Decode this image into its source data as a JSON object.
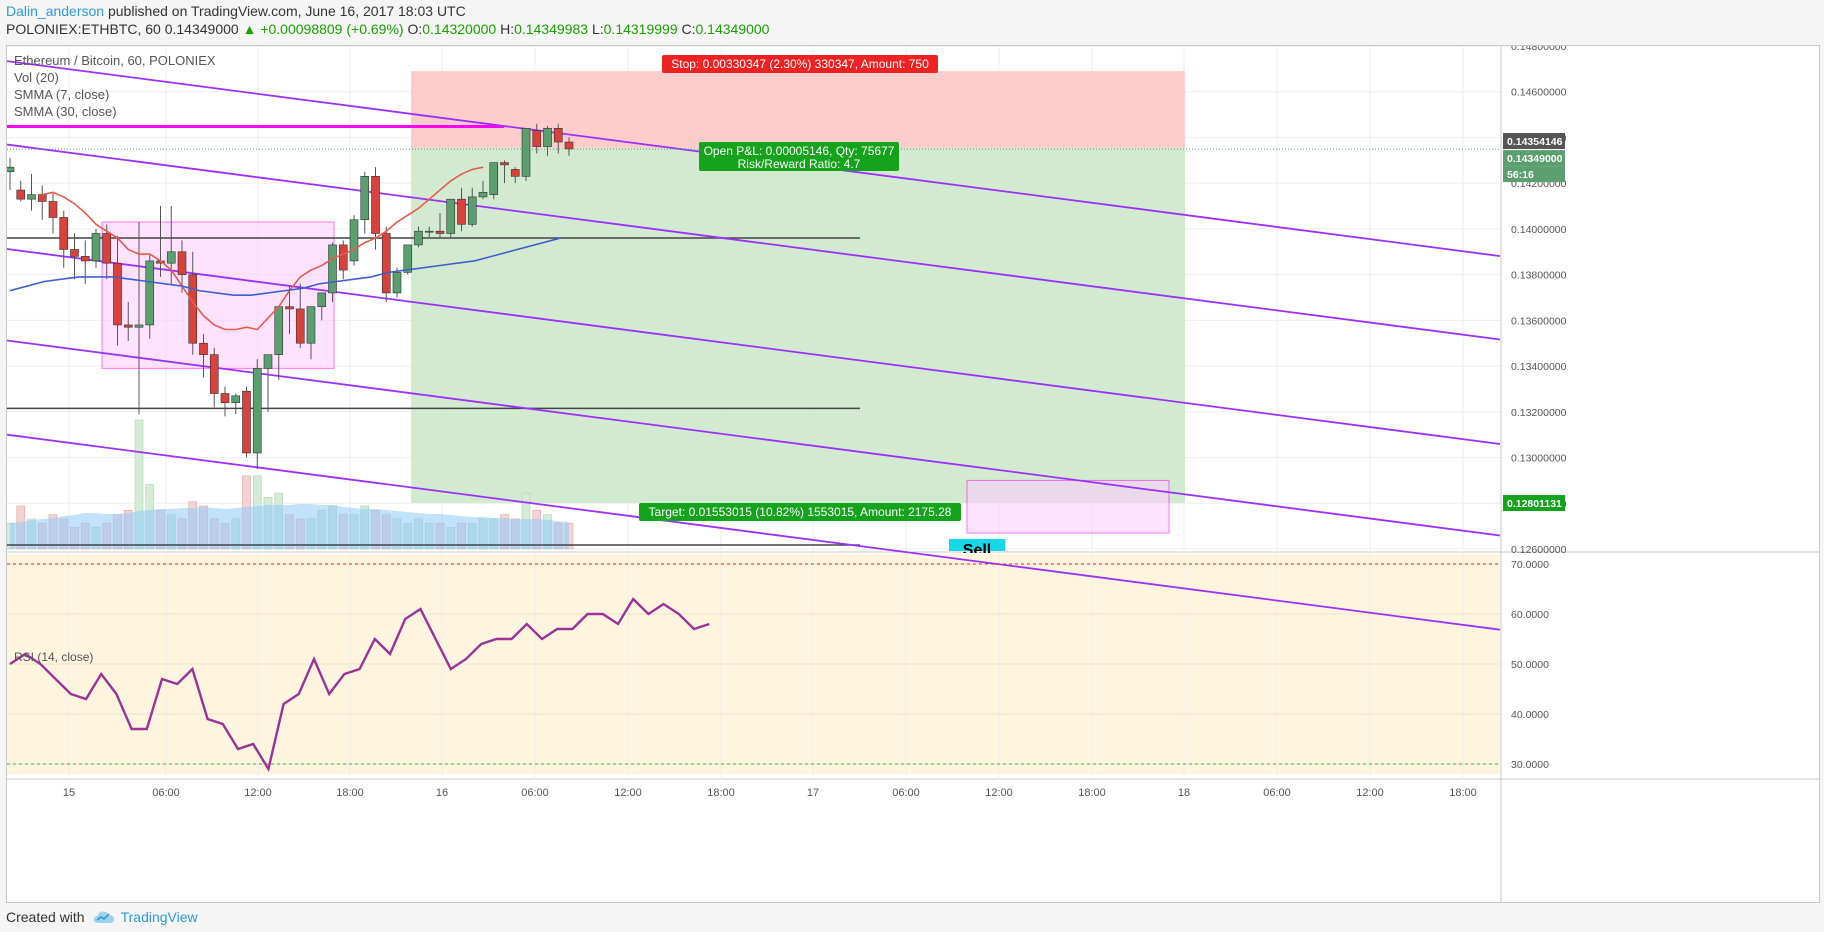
{
  "header": {
    "author": "Dalin_anderson",
    "published": "published on TradingView.com, June 16, 2017 18:03 UTC",
    "symbol_line": "POLONIEX:ETHBTC, 60",
    "last": "0.14349000",
    "change": "▲ +0.00098809 (+0.69%)",
    "o_label": "O:",
    "o": "0.14320000",
    "h_label": "H:",
    "h": "0.14349983",
    "l_label": "L:",
    "l": "0.14319999",
    "c_label": "C:",
    "c": "0.14349000"
  },
  "legend": {
    "title": "Ethereum / Bitcoin, 60, POLONIEX",
    "vol": "Vol (20)",
    "smma7": "SMMA (7, close)",
    "smma30": "SMMA (30, close)"
  },
  "rsi_label": "RSI (14, close)",
  "footer": {
    "created_with": "Created with",
    "brand": "TradingView"
  },
  "colors": {
    "up": "#5b9f6e",
    "down": "#d9413b",
    "channel": "#9b30ff",
    "magenta": "#ff00ff",
    "stop_zone": "#ffc7c7",
    "target_zone": "#cde9cb",
    "rsi_bg": "#fff5df",
    "rsi_line": "#9a3398",
    "smma7": "#e85c4a",
    "smma30": "#3f5fd0"
  },
  "annotations": {
    "stop": "Stop: 0.00330347 (2.30%) 330347, Amount: 750",
    "target": "Target: 0.01553015 (10.82%) 1553015, Amount: 2175.28",
    "pnl": "Open P&L: 0.00005146, Qty: 75677",
    "rr": "Risk/Reward Ratio: 4.7",
    "price_tag_top": "0.14354146",
    "price_tag_last": "0.14349000",
    "countdown": "56:16",
    "price_tag_target": "0.12801131",
    "sell_label": "Sell"
  },
  "chart_data": [
    {
      "type": "candlestick",
      "title": "Ethereum / Bitcoin, 60, POLONIEX",
      "ylim": [
        0.126,
        0.148
      ],
      "y_ticks": [
        "0.14800000",
        "0.14600000",
        "0.14400000",
        "0.14200000",
        "0.14000000",
        "0.13800000",
        "0.13600000",
        "0.13400000",
        "0.13200000",
        "0.13000000",
        "0.12800000",
        "0.12600000"
      ],
      "x_ticks": [
        "15",
        "06:00",
        "12:00",
        "18:00",
        "16",
        "06:00",
        "12:00",
        "18:00",
        "17",
        "06:00",
        "12:00",
        "18:00",
        "18",
        "06:00",
        "12:00",
        "18:00"
      ],
      "candles": [
        [
          0.1425,
          0.1431,
          0.1427,
          0.1417
        ],
        [
          0.1417,
          0.1421,
          0.1413,
          0.1412
        ],
        [
          0.1413,
          0.1424,
          0.1415,
          0.1408
        ],
        [
          0.1415,
          0.1419,
          0.1412,
          0.1404
        ],
        [
          0.1412,
          0.1416,
          0.1405,
          0.1398
        ],
        [
          0.1405,
          0.1408,
          0.1391,
          0.1383
        ],
        [
          0.1391,
          0.1398,
          0.1388,
          0.1378
        ],
        [
          0.1388,
          0.1395,
          0.1386,
          0.1376
        ],
        [
          0.1386,
          0.14,
          0.1398,
          0.1383
        ],
        [
          0.1398,
          0.1402,
          0.1385,
          0.1378
        ],
        [
          0.1385,
          0.1397,
          0.1358,
          0.1349
        ],
        [
          0.1358,
          0.1368,
          0.1357,
          0.1351
        ],
        [
          0.1357,
          0.1403,
          0.1358,
          0.1319
        ],
        [
          0.1358,
          0.1389,
          0.1386,
          0.1352
        ],
        [
          0.1386,
          0.141,
          0.1385,
          0.1379
        ],
        [
          0.1385,
          0.141,
          0.139,
          0.1376
        ],
        [
          0.139,
          0.1395,
          0.138,
          0.1372
        ],
        [
          0.138,
          0.139,
          0.135,
          0.1345
        ],
        [
          0.135,
          0.1354,
          0.1345,
          0.1335
        ],
        [
          0.1345,
          0.1348,
          0.1328,
          0.1322
        ],
        [
          0.1328,
          0.1331,
          0.1324,
          0.1318
        ],
        [
          0.1324,
          0.1328,
          0.1327,
          0.1319
        ],
        [
          0.1329,
          0.1331,
          0.1302,
          0.13
        ],
        [
          0.1302,
          0.1343,
          0.1339,
          0.1295
        ],
        [
          0.1339,
          0.1345,
          0.1345,
          0.132
        ],
        [
          0.1345,
          0.1352,
          0.1366,
          0.1334
        ],
        [
          0.1366,
          0.1375,
          0.1365,
          0.1354
        ],
        [
          0.1365,
          0.1376,
          0.135,
          0.1348
        ],
        [
          0.135,
          0.1363,
          0.1366,
          0.1343
        ],
        [
          0.1366,
          0.1371,
          0.1372,
          0.136
        ],
        [
          0.1372,
          0.1394,
          0.1393,
          0.1368
        ],
        [
          0.1393,
          0.1395,
          0.1382,
          0.1378
        ],
        [
          0.1386,
          0.1406,
          0.1404,
          0.1384
        ],
        [
          0.1404,
          0.1425,
          0.1423,
          0.1398
        ],
        [
          0.1423,
          0.1427,
          0.1398,
          0.1391
        ],
        [
          0.1398,
          0.1401,
          0.1372,
          0.1368
        ],
        [
          0.1372,
          0.1383,
          0.1381,
          0.137
        ],
        [
          0.1381,
          0.1393,
          0.1393,
          0.138
        ],
        [
          0.1393,
          0.1401,
          0.1399,
          0.1392
        ],
        [
          0.1399,
          0.1401,
          0.1399,
          0.1396
        ],
        [
          0.1399,
          0.1407,
          0.1398,
          0.1396
        ],
        [
          0.1398,
          0.1412,
          0.1413,
          0.1396
        ],
        [
          0.1413,
          0.1418,
          0.1402,
          0.1399
        ],
        [
          0.1402,
          0.1418,
          0.1414,
          0.1401
        ],
        [
          0.1414,
          0.1421,
          0.1416,
          0.1413
        ],
        [
          0.1415,
          0.1429,
          0.1429,
          0.1413
        ],
        [
          0.1429,
          0.143,
          0.1428,
          0.142
        ],
        [
          0.1426,
          0.1427,
          0.1423,
          0.142
        ],
        [
          0.1423,
          0.1443,
          0.1444,
          0.1421
        ],
        [
          0.1443,
          0.1446,
          0.1436,
          0.1433
        ],
        [
          0.1436,
          0.1445,
          0.1444,
          0.1432
        ],
        [
          0.1444,
          0.1446,
          0.1438,
          0.1433
        ],
        [
          0.1438,
          0.144,
          0.1435,
          0.1432
        ]
      ],
      "volume_note": "Vol (20) histogram behind price panel",
      "smma7": [
        0.1415,
        0.1416,
        0.1414,
        0.1411,
        0.1407,
        0.1402,
        0.1399,
        0.1396,
        0.1391,
        0.1389,
        0.1389,
        0.1386,
        0.1382,
        0.1375,
        0.1368,
        0.1362,
        0.1358,
        0.1356,
        0.1356,
        0.1357,
        0.1356,
        0.1361,
        0.1366,
        0.1373,
        0.1379,
        0.1382,
        0.1384,
        0.1387,
        0.1389,
        0.1391,
        0.1394,
        0.1396,
        0.1399,
        0.1403,
        0.1406,
        0.1409,
        0.1413,
        0.1417,
        0.1421,
        0.1424,
        0.1426,
        0.1427
      ],
      "smma30": [
        0.1373,
        0.1375,
        0.1377,
        0.1378,
        0.1379,
        0.1379,
        0.1379,
        0.1378,
        0.1377,
        0.1376,
        0.1375,
        0.1373,
        0.1372,
        0.1371,
        0.1371,
        0.1372,
        0.1373,
        0.1374,
        0.1376,
        0.1377,
        0.1378,
        0.1379,
        0.1381,
        0.1382,
        0.1383,
        0.1384,
        0.1385,
        0.1386,
        0.1388,
        0.139,
        0.1392,
        0.1394,
        0.1396
      ]
    },
    {
      "type": "line",
      "title": "RSI (14, close)",
      "ylim": [
        28,
        72
      ],
      "y_ticks": [
        "70.0000",
        "60.0000",
        "50.0000",
        "40.0000",
        "30.0000"
      ],
      "values": [
        50,
        52,
        50,
        47,
        44,
        43,
        48,
        44,
        37,
        37,
        47,
        46,
        49,
        39,
        38,
        33,
        34,
        29,
        42,
        44,
        51,
        44,
        48,
        49,
        55,
        52,
        59,
        61,
        55,
        49,
        51,
        54,
        55,
        55,
        58,
        55,
        57,
        57,
        60,
        60,
        58,
        63,
        60,
        62,
        60,
        57,
        58
      ]
    }
  ]
}
